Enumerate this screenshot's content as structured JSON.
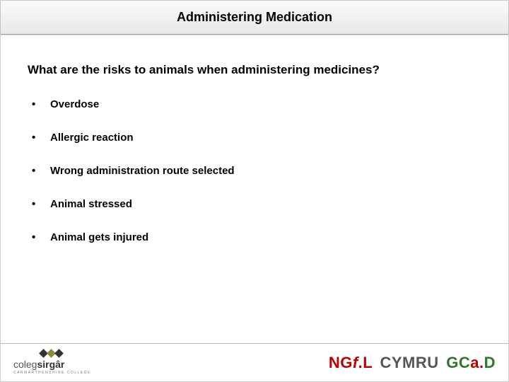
{
  "colors": {
    "title_bg_top": "#fafafa",
    "title_bg_bottom": "#e8e8e8",
    "text": "#000000",
    "red": "#c00000",
    "green": "#2a7a2a",
    "grey": "#555555",
    "border": "#bbbbbb",
    "logo_square_dark": "#333333",
    "logo_square_olive": "#8a8a3a"
  },
  "title": "Administering Medication",
  "question": "What are the risks to animals when administering medicines?",
  "bullets": [
    "Overdose",
    "Allergic reaction",
    "Wrong administration route selected",
    "Animal stressed",
    "Animal gets injured"
  ],
  "footer": {
    "left_logo": {
      "name_html_parts": {
        "prefix": "coleg",
        "bold": "sirgâr"
      },
      "subtitle": "CARMARTHENSHIRE COLLEGE"
    },
    "right_logo": {
      "ngfl": "NGf.L",
      "cymru": "CYMRU",
      "gcad": "GCa.D"
    }
  }
}
